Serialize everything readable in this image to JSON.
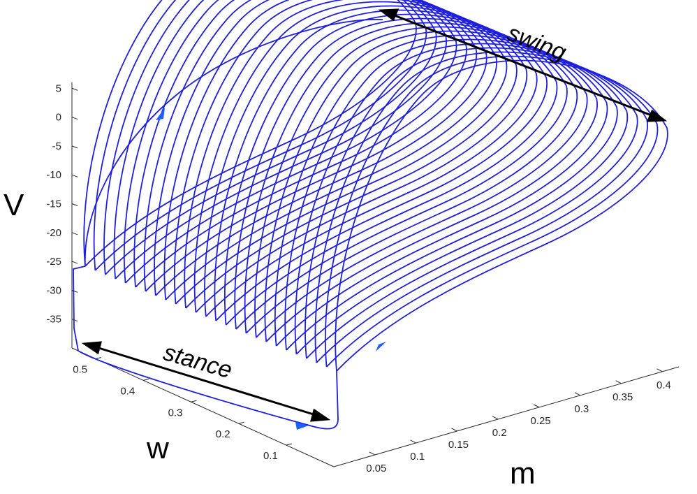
{
  "chart_data": {
    "type": "line",
    "projection": "3d",
    "title": "",
    "xlabel": "m",
    "ylabel": "w",
    "zlabel": "V",
    "x_ticks": [
      "0.05",
      "0.1",
      "0.15",
      "0.2",
      "0.25",
      "0.3",
      "0.35",
      "0.4"
    ],
    "y_ticks": [
      "0.1",
      "0.2",
      "0.3",
      "0.4",
      "0.5"
    ],
    "z_ticks": [
      "5",
      "0",
      "-5",
      "-10",
      "-15",
      "-20",
      "-25",
      "-30",
      "-35"
    ],
    "series": [
      {
        "color": "#1f1fdd",
        "description_points": [
          {
            "m": 0.03,
            "w": 0.5,
            "v": -26
          },
          {
            "m": 0.03,
            "w": 0.5,
            "v": -39
          },
          {
            "m": 0.25,
            "w": 0.05,
            "v": -40
          },
          {
            "m": 0.25,
            "w": 0.05,
            "v": -30
          }
        ]
      }
    ],
    "annotations": [
      {
        "text": "swing"
      },
      {
        "text": "stance"
      }
    ],
    "grid": false
  }
}
